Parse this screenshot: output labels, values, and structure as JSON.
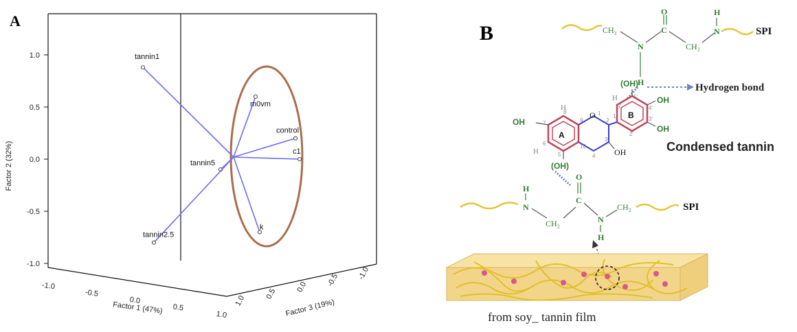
{
  "panel_a": {
    "letter": "A",
    "x_title": "Factor 1 (47%)",
    "y_title": "Factor 2 (32%)",
    "z_title": "Factor 3 (19%)",
    "x_ticks": [
      "-1.0",
      "-0.5",
      "0.0",
      "0.5",
      "1.0"
    ],
    "y_ticks": [
      "1.0",
      "0.5",
      "0.0",
      "-0.5",
      "-1.0"
    ],
    "z_ticks": [
      "1.0",
      "0.5",
      "0.0",
      "-0.5",
      "-1.0"
    ],
    "colors": {
      "vector": "#6b6bf2",
      "ellipse": "#a86e4c",
      "box": "#111111"
    }
  },
  "chart_data": {
    "type": "scatter",
    "subtype": "3d-loading-plot",
    "x_title": "Factor 1 (47%)",
    "y_title": "Factor 2 (32%)",
    "z_title": "Factor 3 (19%)",
    "xlim": [
      -1.0,
      1.0
    ],
    "ylim": [
      -1.0,
      1.0
    ],
    "zlim": [
      -1.0,
      1.0
    ],
    "points": [
      {
        "label": "tannin1",
        "y": 0.88
      },
      {
        "label": "m0vm",
        "y": 0.6
      },
      {
        "label": "control",
        "y": 0.2
      },
      {
        "label": "c1",
        "y": 0.0
      },
      {
        "label": "tannin5",
        "y": -0.1
      },
      {
        "label": "tannin2.5",
        "y": -0.8
      },
      {
        "label": "k",
        "y": -0.7
      }
    ]
  },
  "panel_b": {
    "letter": "B",
    "spi_top": "SPI",
    "spi_bottom": "SPI",
    "ch2": "CH₂",
    "n": "N",
    "h": "H",
    "o": "O",
    "c": "C",
    "oh": "OH",
    "oh_paren": "(OH)",
    "ring_a": "A",
    "ring_b": "B",
    "ring_numbers": [
      "8",
      "7",
      "6",
      "5",
      "9",
      "10",
      "1",
      "2",
      "3",
      "4",
      "1'",
      "2'",
      "3'",
      "4'",
      "5'",
      "6'"
    ],
    "hydrogen_bond_label": "Hydrogen bond",
    "condensed_tannin_label": "Condensed tannin",
    "film_caption": "from  soy_ tannin film",
    "colors": {
      "chain": "#e0c83a",
      "atom": "#2e7d32",
      "ring": "#c0465a",
      "bond": "#3b3bc8",
      "hbond": "#6a86c8",
      "film": "#f3d58a"
    }
  }
}
